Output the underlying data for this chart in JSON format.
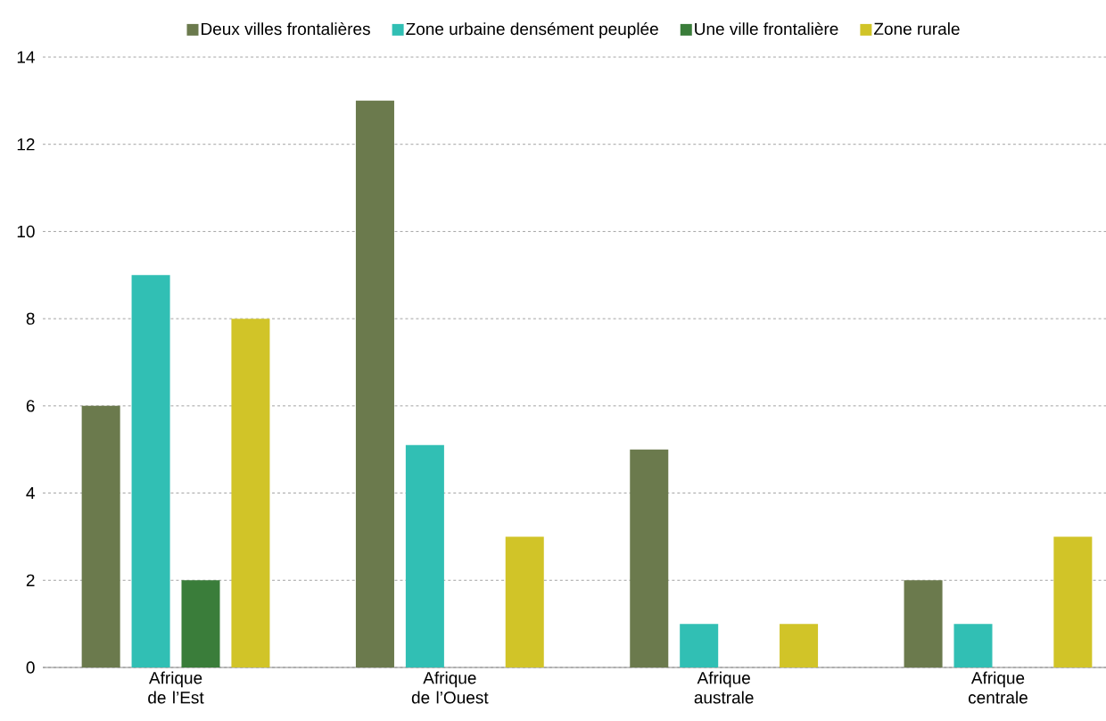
{
  "chart_data": {
    "type": "bar",
    "categories": [
      "Afrique de l’Est",
      "Afrique de l’Ouest",
      "Afrique australe",
      "Afrique centrale"
    ],
    "series": [
      {
        "name": "Deux villes frontalières",
        "color": "#6b7a4d",
        "values": [
          6,
          13,
          5,
          2
        ]
      },
      {
        "name": "Zone urbaine densément peuplée",
        "color": "#31bfb4",
        "values": [
          9,
          5.1,
          1,
          1
        ]
      },
      {
        "name": "Une ville frontalière",
        "color": "#3a7d3a",
        "values": [
          2,
          null,
          null,
          null
        ]
      },
      {
        "name": "Zone rurale",
        "color": "#d1c428",
        "values": [
          8,
          3,
          1,
          3
        ]
      }
    ],
    "ylim": [
      0,
      14
    ],
    "yticks": [
      0,
      2,
      4,
      6,
      8,
      10,
      12,
      14
    ],
    "grid": "y",
    "legend": "top"
  }
}
